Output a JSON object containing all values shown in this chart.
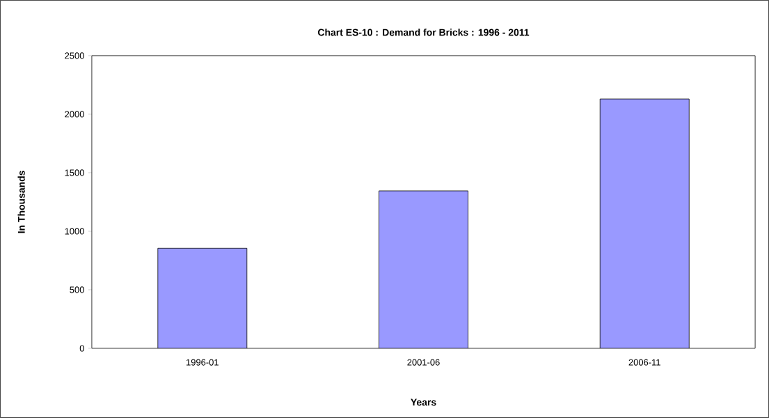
{
  "chart_data": {
    "type": "bar",
    "title": "Chart ES-10 : Demand for Bricks : 1996 - 2011",
    "xlabel": "Years",
    "ylabel": "In Thousands",
    "categories": [
      "1996-01",
      "2001-06",
      "2006-11"
    ],
    "values": [
      855,
      1345,
      2130
    ],
    "color": "#9999ff",
    "ylim": [
      0,
      2500
    ],
    "yticks": [
      0,
      500,
      1000,
      1500,
      2000,
      2500
    ]
  }
}
